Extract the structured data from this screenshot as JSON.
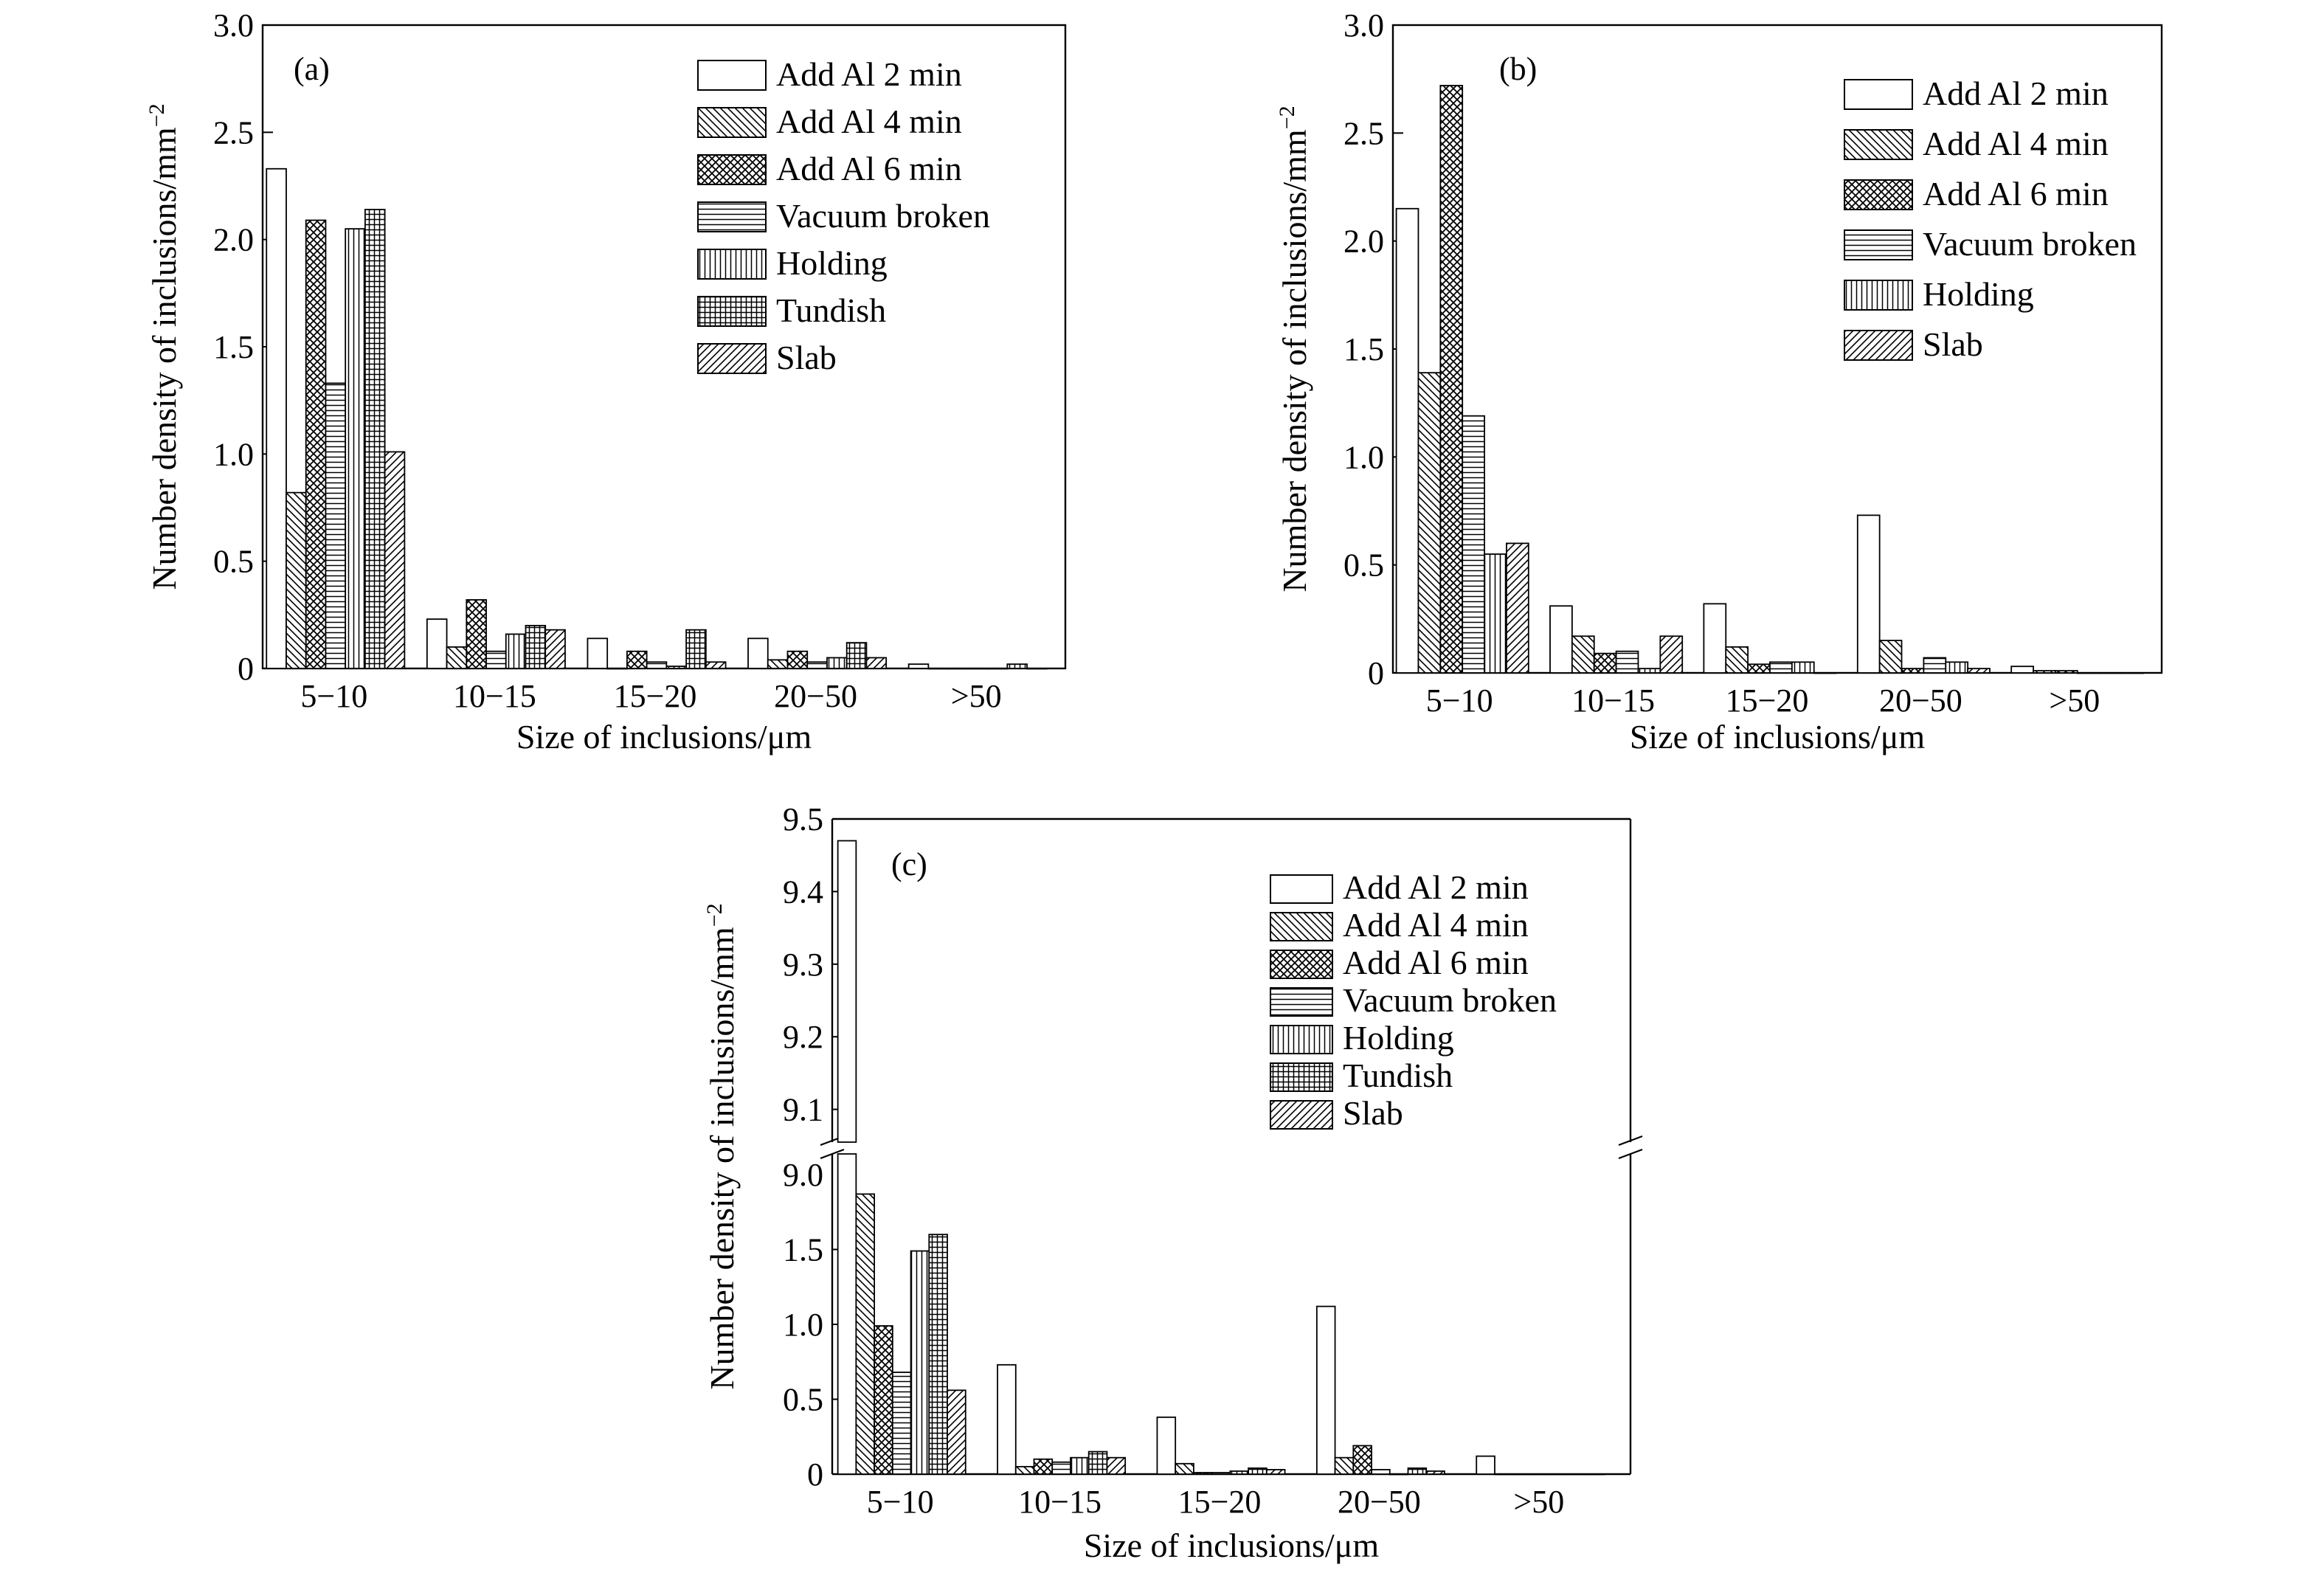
{
  "legend_entries": [
    {
      "label": "Add Al 2 min",
      "pattern": "none"
    },
    {
      "label": "Add Al 4 min",
      "pattern": "diag-back"
    },
    {
      "label": "Add Al 6 min",
      "pattern": "crosshatch"
    },
    {
      "label": "Vacuum broken",
      "pattern": "horizontal"
    },
    {
      "label": "Holding",
      "pattern": "vertical"
    },
    {
      "label": "Tundish",
      "pattern": "grid"
    },
    {
      "label": "Slab",
      "pattern": "diag-fwd"
    }
  ],
  "chart_data": [
    {
      "type": "bar",
      "panel_label": "(a)",
      "categories": [
        "5−10",
        "10−15",
        "15−20",
        "20−50",
        ">50"
      ],
      "xlabel": "Size of inclusions/μm",
      "ylabel": "Number density of inclusions/mm",
      "ylabel_sup": "−2",
      "ylim": [
        0,
        3.0
      ],
      "yticks": [
        0,
        0.5,
        1.0,
        1.5,
        2.0,
        2.5,
        3.0
      ],
      "ytick_labels": [
        "0",
        "0.5",
        "1.0",
        "1.5",
        "2.0",
        "2.5",
        "3.0"
      ],
      "legend_position": "top-right",
      "series": [
        {
          "name": "Add Al 2 min",
          "pattern": "none",
          "values": [
            2.33,
            0.23,
            0.14,
            0.14,
            0.02
          ]
        },
        {
          "name": "Add Al 4 min",
          "pattern": "diag-back",
          "values": [
            0.82,
            0.1,
            0.0,
            0.04,
            0.0
          ]
        },
        {
          "name": "Add Al 6 min",
          "pattern": "crosshatch",
          "values": [
            2.09,
            0.32,
            0.08,
            0.08,
            0.0
          ]
        },
        {
          "name": "Vacuum broken",
          "pattern": "horizontal",
          "values": [
            1.33,
            0.08,
            0.03,
            0.03,
            0.0
          ]
        },
        {
          "name": "Holding",
          "pattern": "vertical",
          "values": [
            2.05,
            0.16,
            0.01,
            0.05,
            0.0
          ]
        },
        {
          "name": "Tundish",
          "pattern": "grid",
          "values": [
            2.14,
            0.2,
            0.18,
            0.12,
            0.02
          ]
        },
        {
          "name": "Slab",
          "pattern": "diag-fwd",
          "values": [
            1.01,
            0.18,
            0.03,
            0.05,
            0.0
          ]
        }
      ]
    },
    {
      "type": "bar",
      "panel_label": "(b)",
      "categories": [
        "5−10",
        "10−15",
        "15−20",
        "20−50",
        ">50"
      ],
      "xlabel": "Size of inclusions/μm",
      "ylabel": "Number density of inclusions/mm",
      "ylabel_sup": "−2",
      "ylim": [
        0,
        3.0
      ],
      "yticks": [
        0,
        0.5,
        1.0,
        1.5,
        2.0,
        2.5,
        3.0
      ],
      "ytick_labels": [
        "0",
        "0.5",
        "1.0",
        "1.5",
        "2.0",
        "2.5",
        "3.0"
      ],
      "legend_position": "top-right",
      "series": [
        {
          "name": "Add Al 2 min",
          "pattern": "none",
          "values": [
            2.15,
            0.31,
            0.32,
            0.73,
            0.03
          ]
        },
        {
          "name": "Add Al 4 min",
          "pattern": "diag-back",
          "values": [
            1.39,
            0.17,
            0.12,
            0.15,
            0.01
          ]
        },
        {
          "name": "Add Al 6 min",
          "pattern": "crosshatch",
          "values": [
            2.72,
            0.09,
            0.04,
            0.02,
            0.01
          ]
        },
        {
          "name": "Vacuum broken",
          "pattern": "horizontal",
          "values": [
            1.19,
            0.1,
            0.05,
            0.07,
            0.0
          ]
        },
        {
          "name": "Holding",
          "pattern": "vertical",
          "values": [
            0.55,
            0.02,
            0.05,
            0.05,
            0.0
          ]
        },
        {
          "name": "Slab",
          "pattern": "diag-fwd",
          "values": [
            0.6,
            0.17,
            0.0,
            0.02,
            0.0
          ]
        }
      ]
    },
    {
      "type": "bar",
      "panel_label": "(c)",
      "categories": [
        "5−10",
        "10−15",
        "15−20",
        "20−50",
        ">50"
      ],
      "xlabel": "Size of inclusions/μm",
      "ylabel": "Number density of inclusions/mm",
      "ylabel_sup": "−2",
      "axis_break": true,
      "ylim_lower": [
        0,
        2.0
      ],
      "yticks_lower": [
        0,
        0.5,
        1.0,
        1.5
      ],
      "ytick_labels_lower": [
        "0",
        "0.5",
        "1.0",
        "1.5"
      ],
      "lower_top_label": "9.0",
      "ylim_upper": [
        9.0,
        9.5
      ],
      "yticks_upper": [
        9.1,
        9.2,
        9.3,
        9.4,
        9.5
      ],
      "ytick_labels_upper": [
        "9.1",
        "9.2",
        "9.3",
        "9.4",
        "9.5"
      ],
      "legend_position": "top-right",
      "series": [
        {
          "name": "Add Al 2 min",
          "pattern": "none",
          "values": [
            9.47,
            0.73,
            0.38,
            1.12,
            0.12
          ]
        },
        {
          "name": "Add Al 4 min",
          "pattern": "diag-back",
          "values": [
            1.87,
            0.05,
            0.07,
            0.11,
            0.0
          ]
        },
        {
          "name": "Add Al 6 min",
          "pattern": "crosshatch",
          "values": [
            0.99,
            0.1,
            0.01,
            0.19,
            0.0
          ]
        },
        {
          "name": "Vacuum broken",
          "pattern": "horizontal",
          "values": [
            0.68,
            0.08,
            0.01,
            0.03,
            0.0
          ]
        },
        {
          "name": "Holding",
          "pattern": "vertical",
          "values": [
            1.49,
            0.11,
            0.02,
            0.0,
            0.0
          ]
        },
        {
          "name": "Tundish",
          "pattern": "grid",
          "values": [
            1.6,
            0.15,
            0.04,
            0.04,
            0.0
          ]
        },
        {
          "name": "Slab",
          "pattern": "diag-fwd",
          "values": [
            0.56,
            0.11,
            0.03,
            0.02,
            0.0
          ]
        }
      ]
    }
  ]
}
